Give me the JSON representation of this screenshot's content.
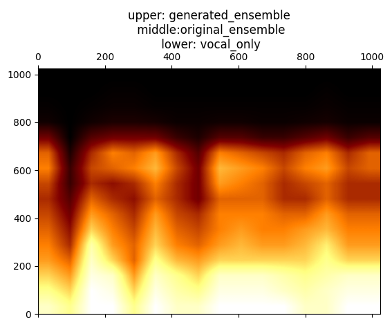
{
  "chart_data": {
    "type": "heatmap",
    "title": "upper: generated_ensemble\n middle:original_ensemble\n lower: vocal_only",
    "xlim": [
      0,
      1024
    ],
    "ylim": [
      0,
      1024
    ],
    "xticks": [
      0,
      200,
      400,
      600,
      800,
      1000
    ],
    "yticks": [
      0,
      200,
      400,
      600,
      800,
      1000
    ],
    "cells": [
      [
        0.8,
        0.7,
        0.9,
        0.9,
        0.7,
        0.9,
        0.8,
        0.8,
        0.9,
        0.9,
        0.9,
        0.9,
        0.8,
        0.8,
        0.9,
        0.9
      ],
      [
        0.7,
        0.6,
        0.9,
        0.85,
        0.6,
        0.85,
        0.75,
        0.7,
        0.85,
        0.85,
        0.85,
        0.8,
        0.75,
        0.8,
        0.85,
        0.85
      ],
      [
        0.6,
        0.5,
        0.85,
        0.8,
        0.5,
        0.8,
        0.7,
        0.6,
        0.8,
        0.8,
        0.8,
        0.75,
        0.7,
        0.75,
        0.8,
        0.8
      ],
      [
        0.5,
        0.4,
        0.8,
        0.6,
        0.4,
        0.7,
        0.55,
        0.5,
        0.6,
        0.6,
        0.6,
        0.6,
        0.6,
        0.7,
        0.6,
        0.6
      ],
      [
        0.45,
        0.3,
        0.75,
        0.5,
        0.4,
        0.6,
        0.45,
        0.4,
        0.5,
        0.55,
        0.5,
        0.5,
        0.55,
        0.65,
        0.5,
        0.5
      ],
      [
        0.4,
        0.25,
        0.6,
        0.45,
        0.35,
        0.55,
        0.4,
        0.35,
        0.45,
        0.5,
        0.45,
        0.45,
        0.5,
        0.55,
        0.45,
        0.45
      ],
      [
        0.35,
        0.2,
        0.5,
        0.4,
        0.3,
        0.5,
        0.35,
        0.3,
        0.45,
        0.45,
        0.45,
        0.4,
        0.4,
        0.5,
        0.4,
        0.4
      ],
      [
        0.3,
        0.15,
        0.4,
        0.3,
        0.25,
        0.4,
        0.3,
        0.2,
        0.4,
        0.4,
        0.4,
        0.3,
        0.3,
        0.4,
        0.3,
        0.3
      ],
      [
        0.35,
        0.1,
        0.3,
        0.25,
        0.3,
        0.45,
        0.3,
        0.2,
        0.5,
        0.45,
        0.4,
        0.3,
        0.35,
        0.4,
        0.3,
        0.3
      ],
      [
        0.45,
        0.1,
        0.35,
        0.4,
        0.45,
        0.55,
        0.35,
        0.2,
        0.55,
        0.5,
        0.45,
        0.35,
        0.45,
        0.5,
        0.35,
        0.4
      ],
      [
        0.4,
        0.05,
        0.3,
        0.45,
        0.4,
        0.5,
        0.3,
        0.15,
        0.45,
        0.4,
        0.35,
        0.3,
        0.4,
        0.45,
        0.3,
        0.4
      ],
      [
        0.2,
        0.0,
        0.15,
        0.2,
        0.2,
        0.2,
        0.1,
        0.05,
        0.15,
        0.15,
        0.1,
        0.1,
        0.15,
        0.2,
        0.1,
        0.15
      ],
      [
        0.03,
        0.0,
        0.03,
        0.05,
        0.05,
        0.04,
        0.02,
        0.02,
        0.03,
        0.03,
        0.02,
        0.02,
        0.03,
        0.04,
        0.02,
        0.02
      ],
      [
        0.01,
        0.0,
        0.01,
        0.02,
        0.02,
        0.01,
        0.01,
        0.01,
        0.01,
        0.01,
        0.01,
        0.01,
        0.01,
        0.02,
        0.01,
        0.01
      ],
      [
        0.0,
        0.0,
        0.0,
        0.01,
        0.01,
        0.0,
        0.0,
        0.0,
        0.0,
        0.0,
        0.0,
        0.0,
        0.0,
        0.01,
        0.0,
        0.0
      ],
      [
        0.0,
        0.0,
        0.0,
        0.0,
        0.0,
        0.0,
        0.0,
        0.0,
        0.0,
        0.0,
        0.0,
        0.0,
        0.0,
        0.0,
        0.0,
        0.0
      ]
    ]
  }
}
